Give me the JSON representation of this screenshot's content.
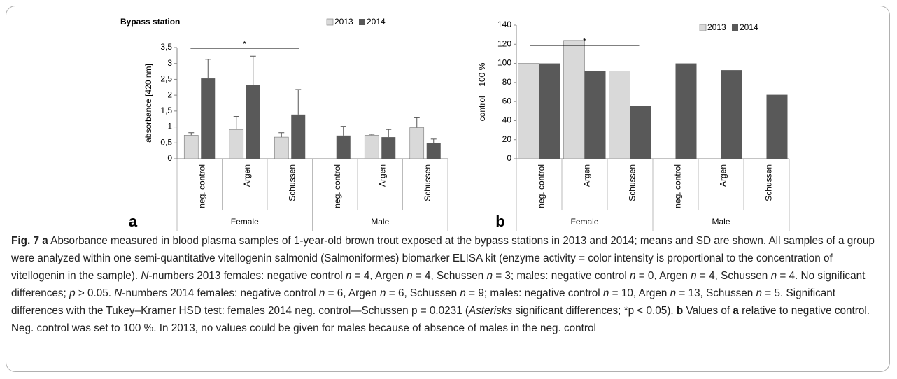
{
  "chart_data": [
    {
      "type": "bar",
      "title": "Bypass station",
      "ylabel": "absorbance [420 nm]",
      "panel_label": "a",
      "annotation": "*",
      "categories": [
        "neg. control",
        "Argen",
        "Schussen",
        "neg. control",
        "Argen",
        "Schussen"
      ],
      "groups": [
        "Female",
        "Male"
      ],
      "series": [
        {
          "name": "2013",
          "color": "#d9d9d9",
          "values": [
            0.74,
            0.92,
            0.68,
            null,
            0.74,
            0.98
          ],
          "errors": [
            0.08,
            0.41,
            0.14,
            null,
            0.03,
            0.31
          ]
        },
        {
          "name": "2014",
          "color": "#595959",
          "values": [
            2.53,
            2.33,
            1.39,
            0.73,
            0.68,
            0.49
          ],
          "errors": [
            0.6,
            0.9,
            0.79,
            0.29,
            0.24,
            0.13
          ]
        }
      ],
      "ylim": [
        0,
        3.5
      ],
      "yticks": [
        0,
        {
          "value": 0.5,
          "label": "0,5"
        },
        1,
        {
          "value": 1.5,
          "label": "1,5"
        },
        2,
        {
          "value": 2.5,
          "label": "2,5"
        },
        3,
        {
          "value": 3.5,
          "label": "3,5"
        }
      ]
    },
    {
      "type": "bar",
      "ylabel": "control = 100 %",
      "panel_label": "b",
      "annotation": "*",
      "categories": [
        "neg. control",
        "Argen",
        "Schussen",
        "neg. control",
        "Argen",
        "Schussen"
      ],
      "groups": [
        "Female",
        "Male"
      ],
      "series": [
        {
          "name": "2013",
          "color": "#d9d9d9",
          "values": [
            100,
            124,
            92,
            null,
            null,
            null
          ]
        },
        {
          "name": "2014",
          "color": "#595959",
          "values": [
            100,
            92,
            55,
            100,
            93,
            67
          ]
        }
      ],
      "ylim": [
        0,
        140
      ],
      "yticks": [
        0,
        20,
        40,
        60,
        80,
        100,
        120,
        140
      ]
    }
  ],
  "caption": [
    {
      "style": "bold",
      "text": "Fig. 7"
    },
    {
      "style": "plain",
      "text": " "
    },
    {
      "style": "bold",
      "text": "a"
    },
    {
      "style": "plain",
      "text": " Absorbance measured in blood plasma samples of 1-year-old brown trout exposed at the bypass stations in 2013 and 2014; means and SD are shown. All samples of a group were analyzed within one semi-quantitative vitellogenin salmonid (Salmoniformes) biomarker ELISA kit (enzyme activity = color intensity is proportional to the concentration of vitellogenin in the sample). "
    },
    {
      "style": "italic",
      "text": "N"
    },
    {
      "style": "plain",
      "text": "-numbers 2013 females: negative control "
    },
    {
      "style": "italic",
      "text": "n"
    },
    {
      "style": "plain",
      "text": " = 4, Argen "
    },
    {
      "style": "italic",
      "text": "n"
    },
    {
      "style": "plain",
      "text": " = 4, Schussen "
    },
    {
      "style": "italic",
      "text": "n"
    },
    {
      "style": "plain",
      "text": " = 3; males: negative control "
    },
    {
      "style": "italic",
      "text": "n"
    },
    {
      "style": "plain",
      "text": " = 0, Argen "
    },
    {
      "style": "italic",
      "text": "n"
    },
    {
      "style": "plain",
      "text": " = 4, Schussen "
    },
    {
      "style": "italic",
      "text": "n"
    },
    {
      "style": "plain",
      "text": " = 4. No significant differences; "
    },
    {
      "style": "italic",
      "text": "p"
    },
    {
      "style": "plain",
      "text": " > 0.05. "
    },
    {
      "style": "italic",
      "text": "N"
    },
    {
      "style": "plain",
      "text": "-numbers 2014 females: negative control "
    },
    {
      "style": "italic",
      "text": "n"
    },
    {
      "style": "plain",
      "text": " = 6, Argen "
    },
    {
      "style": "italic",
      "text": "n"
    },
    {
      "style": "plain",
      "text": " = 6, Schussen "
    },
    {
      "style": "italic",
      "text": "n"
    },
    {
      "style": "plain",
      "text": " = 9; males: negative control "
    },
    {
      "style": "italic",
      "text": "n"
    },
    {
      "style": "plain",
      "text": " = 10, Argen "
    },
    {
      "style": "italic",
      "text": "n"
    },
    {
      "style": "plain",
      "text": " = 13, Schussen "
    },
    {
      "style": "italic",
      "text": "n"
    },
    {
      "style": "plain",
      "text": " = 5. Significant differences with the Tukey–Kramer HSD test: females 2014 neg. control—Schussen p = 0.0231 ("
    },
    {
      "style": "italic",
      "text": "Asterisks"
    },
    {
      "style": "plain",
      "text": " significant differences; *p < 0.05). "
    },
    {
      "style": "bold",
      "text": "b"
    },
    {
      "style": "plain",
      "text": " Values of "
    },
    {
      "style": "bold",
      "text": "a"
    },
    {
      "style": "plain",
      "text": " relative to negative control. Neg. control was set to 100 %. In 2013, no values could be given for males because of absence of males in the neg. control"
    }
  ]
}
